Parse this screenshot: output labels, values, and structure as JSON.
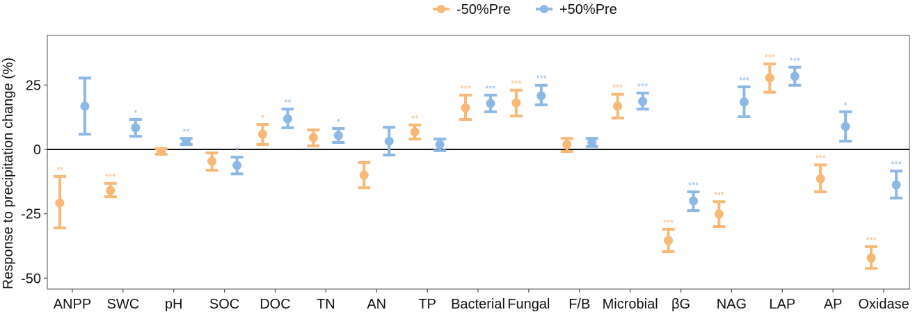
{
  "chart_data": {
    "type": "scatter",
    "subtype": "point-errorbar",
    "title": "",
    "xlabel": "",
    "ylabel": "Response to precipitation change (%)",
    "ylim": [
      -55,
      44
    ],
    "yticks": [
      -50,
      -25,
      0,
      25
    ],
    "ytick_labels": [
      "-50",
      "-25",
      "0",
      "25"
    ],
    "reference_line": 0,
    "grid": false,
    "legend": {
      "position": "top-center"
    },
    "categories": [
      "ANPP",
      "SWC",
      "pH",
      "SOC",
      "DOC",
      "TN",
      "AN",
      "TP",
      "Bacterial",
      "Fungal",
      "F/B",
      "Microbial",
      "βG",
      "NAG",
      "LAP",
      "AP",
      "Oxidase"
    ],
    "series": [
      {
        "name": "-50%Pre",
        "color": "#F9B875",
        "values": [
          -20.8,
          -16.0,
          -0.8,
          -4.6,
          5.9,
          4.6,
          -10.0,
          6.8,
          16.2,
          18.1,
          1.9,
          16.8,
          -35.4,
          -25.1,
          27.8,
          -11.4,
          -42.2
        ],
        "upper": [
          -10.5,
          -13.2,
          0.3,
          -1.4,
          9.7,
          7.6,
          -5.1,
          9.5,
          21.1,
          23.0,
          4.3,
          21.4,
          -31.0,
          -20.3,
          33.2,
          -6.0,
          -37.8
        ],
        "lower": [
          -30.5,
          -18.4,
          -1.9,
          -8.1,
          1.9,
          1.4,
          -14.9,
          4.0,
          11.6,
          13.0,
          -0.8,
          12.2,
          -39.7,
          -30.0,
          22.2,
          -16.5,
          -46.2
        ],
        "significance": [
          "**",
          "***",
          "",
          "",
          "*",
          "",
          "",
          "**",
          "***",
          "***",
          "",
          "***",
          "***",
          "***",
          "***",
          "***",
          "***"
        ]
      },
      {
        "name": "+50%Pre",
        "color": "#8CB8E8",
        "values": [
          16.8,
          8.4,
          3.0,
          -6.2,
          11.9,
          5.4,
          3.2,
          1.9,
          17.8,
          20.8,
          2.7,
          18.7,
          -20.0,
          18.4,
          28.4,
          8.9,
          -13.8
        ],
        "upper": [
          27.7,
          11.6,
          4.3,
          -3.0,
          15.7,
          8.1,
          8.6,
          4.0,
          21.1,
          24.9,
          4.3,
          21.9,
          -16.5,
          24.3,
          31.9,
          14.6,
          -8.4
        ],
        "lower": [
          5.9,
          5.1,
          1.9,
          -9.5,
          8.4,
          2.7,
          -2.2,
          -0.5,
          14.6,
          17.3,
          1.1,
          15.7,
          -23.8,
          12.7,
          24.9,
          3.2,
          -18.9
        ],
        "significance": [
          "",
          "*",
          "**",
          "*",
          "**",
          "*",
          "",
          "",
          "***",
          "***",
          "",
          "***",
          "***",
          "***",
          "***",
          "*",
          "***"
        ]
      }
    ]
  }
}
